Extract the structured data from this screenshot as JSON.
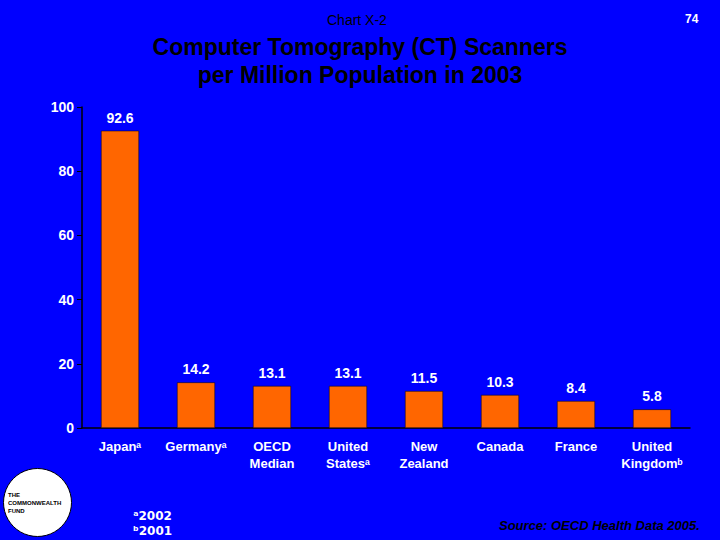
{
  "chart_data": {
    "type": "bar",
    "title": "Computer Tomography (CT) Scanners\nper Million Population in 2003",
    "categories": [
      "Japanᵃ",
      "Germanyᵃ",
      "OECD\nMedian",
      "United\nStatesᵃ",
      "New\nZealand",
      "Canada",
      "France",
      "United\nKingdomᵇ"
    ],
    "values": [
      92.6,
      14.2,
      13.1,
      13.1,
      11.5,
      10.3,
      8.4,
      5.8
    ],
    "color": "#ff6600",
    "ylim": [
      0,
      100
    ],
    "yticks": [
      0,
      20,
      40,
      60,
      80,
      100
    ],
    "grid": false,
    "data_labels": true,
    "annotations": {
      "chart_label": "Chart X-2",
      "page": "74",
      "footnotes": [
        "ᵃ2002",
        "ᵇ2001"
      ],
      "source": "Source: OECD Health Data 2005.",
      "logo": "THE COMMONWEALTH FUND"
    }
  }
}
